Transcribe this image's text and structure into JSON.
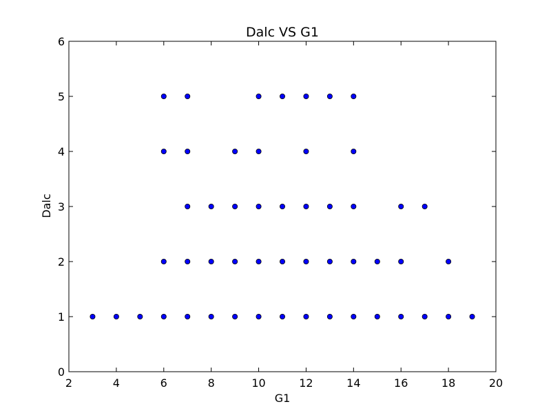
{
  "chart_data": {
    "type": "scatter",
    "title": "Dalc VS G1",
    "xlabel": "G1",
    "ylabel": "Dalc",
    "xlim": [
      2,
      20
    ],
    "ylim": [
      0,
      6
    ],
    "xticks": [
      2,
      4,
      6,
      8,
      10,
      12,
      14,
      16,
      18,
      20
    ],
    "yticks": [
      0,
      1,
      2,
      3,
      4,
      5,
      6
    ],
    "grid": false,
    "marker_color": "#0000ff",
    "marker_edge_color": "#000000",
    "series": [
      {
        "points": [
          [
            3,
            1
          ],
          [
            4,
            1
          ],
          [
            5,
            1
          ],
          [
            6,
            1
          ],
          [
            7,
            1
          ],
          [
            8,
            1
          ],
          [
            9,
            1
          ],
          [
            10,
            1
          ],
          [
            11,
            1
          ],
          [
            12,
            1
          ],
          [
            13,
            1
          ],
          [
            14,
            1
          ],
          [
            15,
            1
          ],
          [
            16,
            1
          ],
          [
            17,
            1
          ],
          [
            18,
            1
          ],
          [
            19,
            1
          ],
          [
            6,
            2
          ],
          [
            7,
            2
          ],
          [
            8,
            2
          ],
          [
            9,
            2
          ],
          [
            10,
            2
          ],
          [
            11,
            2
          ],
          [
            12,
            2
          ],
          [
            13,
            2
          ],
          [
            14,
            2
          ],
          [
            15,
            2
          ],
          [
            16,
            2
          ],
          [
            18,
            2
          ],
          [
            7,
            3
          ],
          [
            8,
            3
          ],
          [
            9,
            3
          ],
          [
            10,
            3
          ],
          [
            11,
            3
          ],
          [
            12,
            3
          ],
          [
            13,
            3
          ],
          [
            14,
            3
          ],
          [
            16,
            3
          ],
          [
            17,
            3
          ],
          [
            6,
            4
          ],
          [
            7,
            4
          ],
          [
            9,
            4
          ],
          [
            10,
            4
          ],
          [
            12,
            4
          ],
          [
            14,
            4
          ],
          [
            6,
            5
          ],
          [
            7,
            5
          ],
          [
            10,
            5
          ],
          [
            11,
            5
          ],
          [
            12,
            5
          ],
          [
            13,
            5
          ],
          [
            14,
            5
          ]
        ]
      }
    ]
  }
}
